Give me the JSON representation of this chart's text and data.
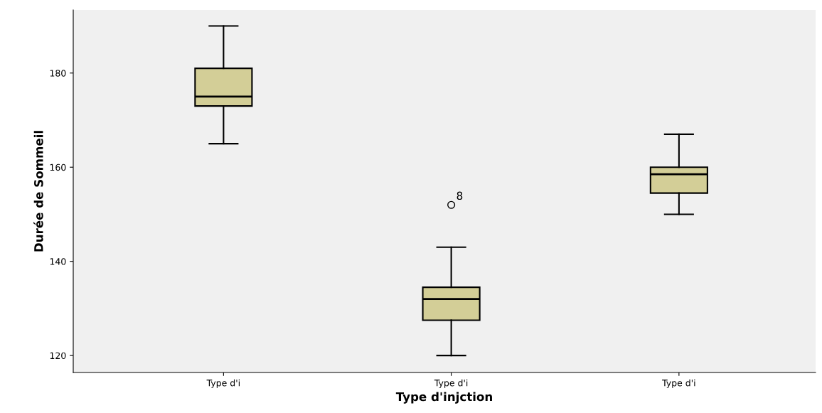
{
  "chart_data": {
    "type": "box",
    "xlabel": "Type d'injction",
    "ylabel": "Durée de Sommeil",
    "categories": [
      "Type d'i",
      "Type d'i",
      "Type d'i"
    ],
    "color": "#d3ce97",
    "boxes": [
      {
        "low": 165,
        "q1": 173,
        "median": 175,
        "q3": 181,
        "high": 190
      },
      {
        "low": 120,
        "q1": 127.5,
        "median": 132,
        "q3": 134.5,
        "high": 143,
        "outliers": [
          152
        ]
      },
      {
        "low": 150,
        "q1": 154.5,
        "median": 158.5,
        "q3": 160,
        "high": 167
      }
    ],
    "ylim": [
      116.4,
      193.4
    ],
    "yticks": [
      120,
      140,
      160,
      180
    ],
    "grid": false,
    "annotations": [
      "8"
    ]
  }
}
